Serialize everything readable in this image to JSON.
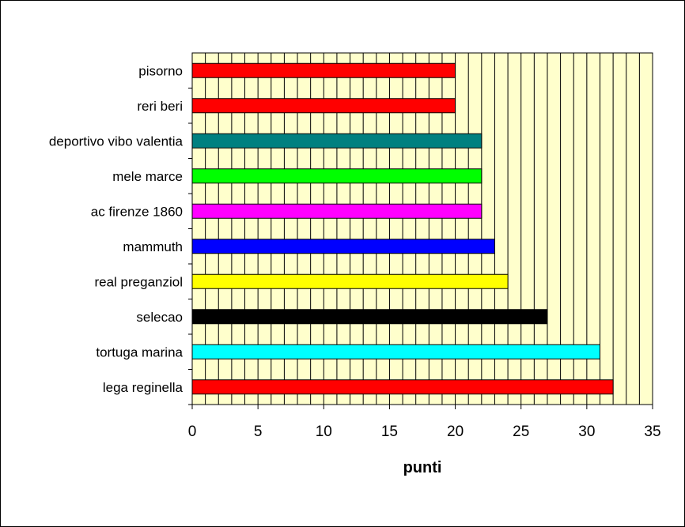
{
  "chart_data": {
    "type": "bar",
    "orientation": "horizontal",
    "categories": [
      "lega reginella",
      "tortuga marina",
      "selecao",
      "real preganziol",
      "mammuth",
      "ac firenze 1860",
      "mele marce",
      "deportivo vibo valentia",
      "reri beri",
      "pisorno"
    ],
    "values": [
      32,
      31,
      27,
      24,
      23,
      22,
      22,
      22,
      20,
      20
    ],
    "bar_colors": [
      "#ff0000",
      "#00ffff",
      "#000000",
      "#ffff00",
      "#0000ff",
      "#ff00ff",
      "#00ff00",
      "#008080",
      "#ff0000",
      "#ff0000"
    ],
    "xlabel": "punti",
    "ylabel": "",
    "xlim": [
      0,
      35
    ],
    "xticks": [
      0,
      5,
      10,
      15,
      20,
      25,
      30,
      35
    ],
    "grid": "vertical at every 1 unit",
    "plot_background": "#ffffcc"
  }
}
